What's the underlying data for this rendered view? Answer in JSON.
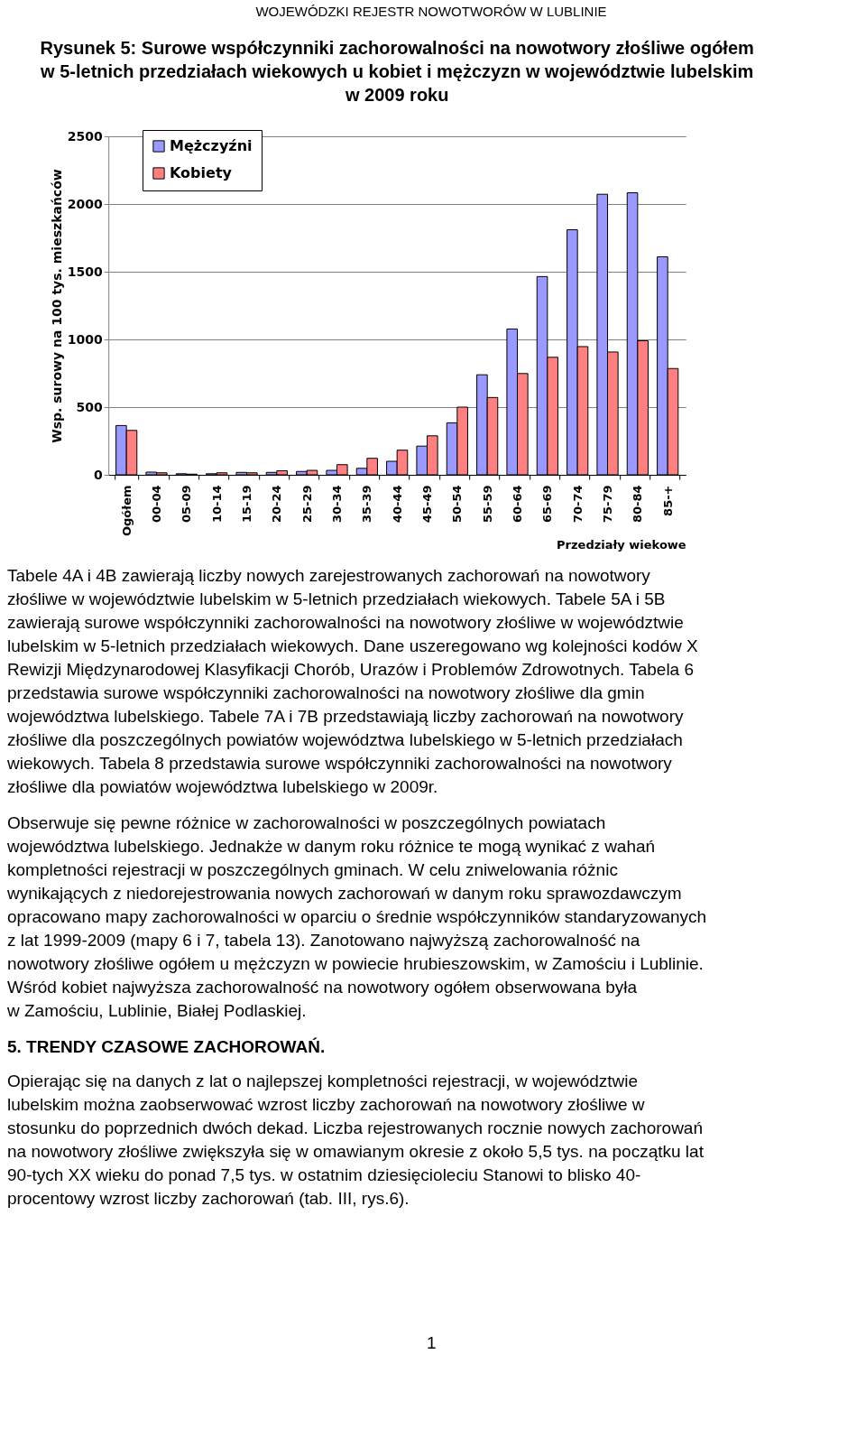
{
  "chart_data": {
    "type": "bar",
    "title": "Rysunek 5: Surowe współczynniki zachorowalności na nowotwory złośliwe ogółem\nw 5-letnich przedziałach wiekowych u kobiet i mężczyzn w województwie lubelskim\nw 2009 roku",
    "xlabel": "Przedziały wiekowe",
    "ylabel": "Wsp. surowy na 100 tys. mieszkańców",
    "categories": [
      "Ogółem",
      "00-04",
      "05-09",
      "10-14",
      "15-19",
      "20-24",
      "25-29",
      "30-34",
      "35-39",
      "40-44",
      "45-49",
      "50-54",
      "55-59",
      "60-64",
      "65-69",
      "70-74",
      "75-79",
      "80-84",
      "85-+"
    ],
    "series": [
      {
        "name": "Mężczyźni",
        "color": "#9999ff",
        "values": [
          364,
          20,
          8,
          8,
          18,
          18,
          25,
          33,
          48,
          100,
          212,
          384,
          739,
          1077,
          1464,
          1810,
          2072,
          2083,
          1610
        ]
      },
      {
        "name": "Kobiety",
        "color": "#ff8080",
        "values": [
          328,
          15,
          5,
          15,
          15,
          30,
          33,
          75,
          122,
          182,
          288,
          500,
          571,
          748,
          868,
          947,
          907,
          990,
          785
        ]
      }
    ],
    "ylim": [
      0,
      2500
    ],
    "yticks": [
      0,
      500,
      1000,
      1500,
      2000,
      2500
    ],
    "grid": "y",
    "legend": "top left",
    "annotations": [
      "WOJEWÓDZKI REJESTR NOWOTWORÓW  W LUBLINIE",
      "Tabele 4A i 4B zawierają liczby nowych zarejestrowanych zachorowań na nowotwory\nzłośliwe w województwie lubelskim w 5-letnich przedziałach wiekowych. Tabele 5A i 5B\nzawierają surowe współczynniki zachorowalności na nowotwory złośliwe w województwie\nlubelskim w 5-letnich przedziałach wiekowych. Dane uszeregowano wg kolejności kodów X\nRewizji Międzynarodowej Klasyfikacji Chorób, Urazów i Problemów Zdrowotnych. Tabela 6\nprzedstawia surowe współczynniki zachorowalności na nowotwory złośliwe dla gmin\nwojewództwa lubelskiego. Tabele 7A i 7B przedstawiają liczby zachorowań na nowotwory\nzłośliwe dla poszczególnych powiatów województwa lubelskiego w 5-letnich przedziałach\nwiekowych. Tabela 8 przedstawia surowe współczynniki zachorowalności na nowotwory\nzłośliwe dla powiatów województwa lubelskiego w 2009r.",
      "Obserwuje się pewne różnice w zachorowalności w poszczególnych powiatach\nwojewództwa lubelskiego. Jednakże w danym roku różnice te mogą wynikać z wahań\nkompletności rejestracji w poszczególnych gminach. W celu zniwelowania różnic\nwynikających z niedorejestrowania nowych zachorowań w danym roku sprawozdawczym\nopracowano mapy zachorowalności w oparciu o średnie współczynników standaryzowanych\nz lat 1999-2009 (mapy 6 i 7, tabela 13). Zanotowano najwyższą zachorowalność na\nnowotwory złośliwe ogółem u mężczyzn w powiecie hrubieszowskim, w Zamościu i Lublinie.\nWśród kobiet najwyższa zachorowalność na nowotwory ogółem obserwowana była\nw Zamościu, Lublinie, Białej Podlaskiej.",
      "5. TRENDY CZASOWE ZACHOROWAŃ.",
      "Opierając się na danych z lat o najlepszej kompletności rejestracji, w województwie\nlubelskim można zaobserwować wzrost liczby zachorowań na nowotwory złośliwe w\nstosunku do poprzednich dwóch dekad. Liczba rejestrowanych rocznie nowych zachorowań\nna nowotwory złośliwe zwiększyła się w omawianym okresie z około 5,5 tys. na początku lat\n90-tych XX wieku do ponad 7,5 tys. w ostatnim dziesięcioleciu Stanowi to blisko 40-\nprocentowy wzrost liczby zachorowań (tab. III, rys.6).",
      "1"
    ]
  }
}
